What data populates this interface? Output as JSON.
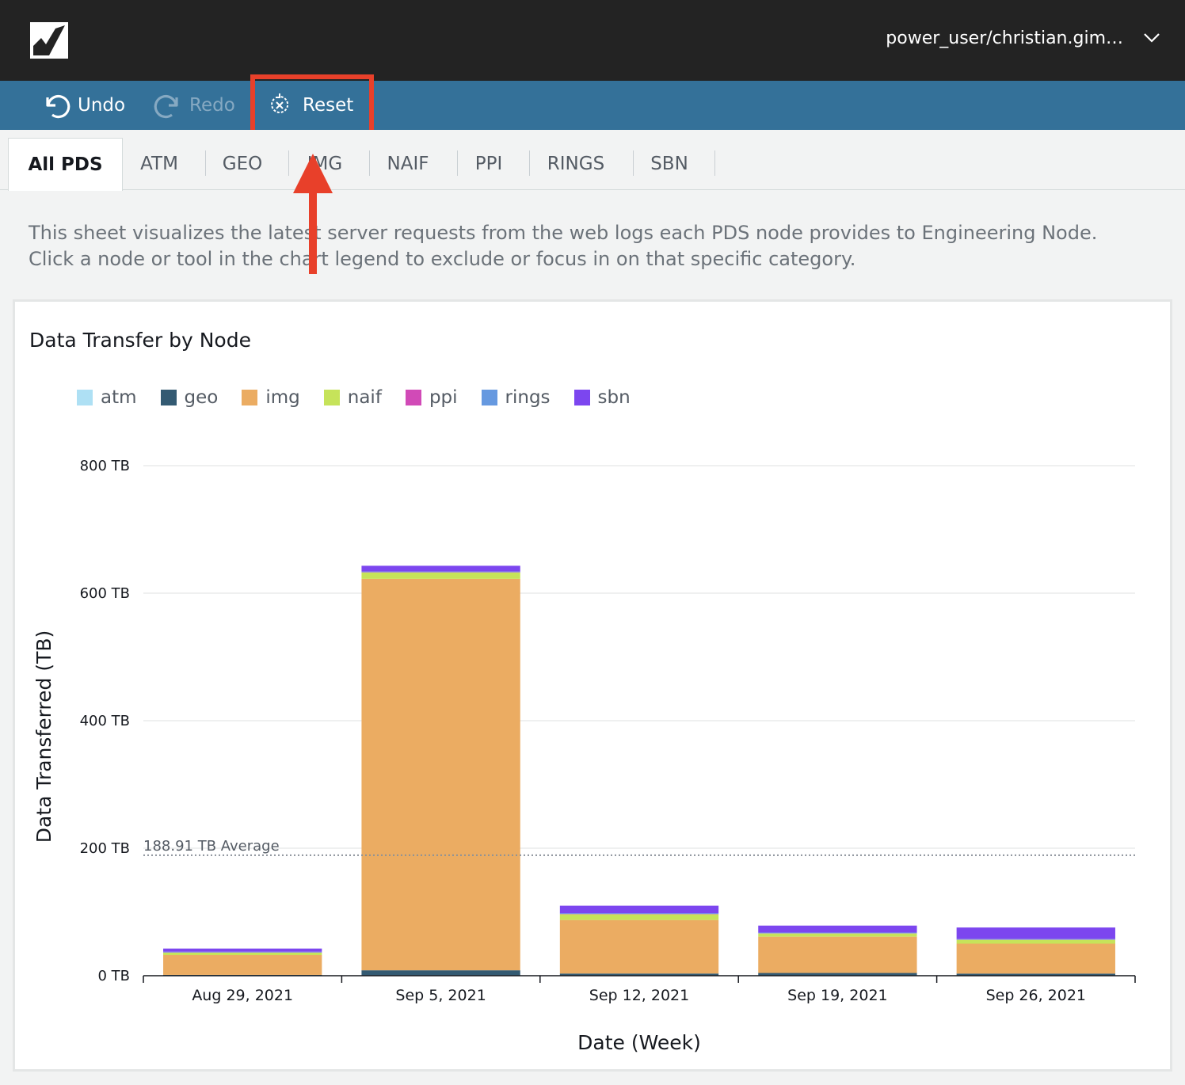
{
  "header": {
    "logo_icon": "quicksight-logo-icon",
    "user": "power_user/christian.gim…"
  },
  "toolbar": {
    "undo": "Undo",
    "redo": "Redo",
    "reset": "Reset"
  },
  "tabs": [
    "All PDS",
    "ATM",
    "GEO",
    "IMG",
    "NAIF",
    "PPI",
    "RINGS",
    "SBN"
  ],
  "description": {
    "line1": "This sheet visualizes the latest server requests from the web logs each PDS node provides to Engineering Node.",
    "line2": "Click a node or tool in the chart legend to exclude or focus in on that specific category."
  },
  "visual": {
    "title": "Data Transfer by Node"
  },
  "colors": {
    "atm": "#aee0f4",
    "geo": "#335a72",
    "img": "#ebac62",
    "naif": "#c6e35a",
    "ppi": "#d14ab7",
    "rings": "#6699e0",
    "sbn": "#7c46ef",
    "accent": "#347199",
    "highlight": "#e8402a"
  },
  "chart_data": {
    "type": "bar",
    "stacked": true,
    "title": "Data Transfer by Node",
    "xlabel": "Date (Week)",
    "ylabel": "Data Transferred (TB)",
    "ylim": [
      0,
      800
    ],
    "yticks": [
      "0 TB",
      "200 TB",
      "400 TB",
      "600 TB",
      "800 TB"
    ],
    "ytick_values": [
      0,
      200,
      400,
      600,
      800
    ],
    "grid": true,
    "legend_position": "top-left",
    "categories": [
      "Aug 29, 2021",
      "Sep 5, 2021",
      "Sep 12, 2021",
      "Sep 19, 2021",
      "Sep 26, 2021"
    ],
    "series": [
      {
        "name": "atm",
        "values": [
          0.3,
          0.5,
          0.4,
          0.3,
          0.3
        ]
      },
      {
        "name": "geo",
        "values": [
          1,
          8,
          3,
          4,
          3
        ]
      },
      {
        "name": "img",
        "values": [
          31,
          614,
          84,
          57,
          47
        ]
      },
      {
        "name": "naif",
        "values": [
          4,
          10,
          9,
          5,
          6
        ]
      },
      {
        "name": "ppi",
        "values": [
          0.3,
          0.5,
          0.4,
          0.3,
          0.3
        ]
      },
      {
        "name": "rings",
        "values": [
          1,
          1,
          1,
          1,
          1
        ]
      },
      {
        "name": "sbn",
        "values": [
          5,
          9,
          12,
          11,
          18
        ]
      }
    ],
    "reference_line": {
      "value": 188.91,
      "label": "188.91 TB Average"
    }
  }
}
